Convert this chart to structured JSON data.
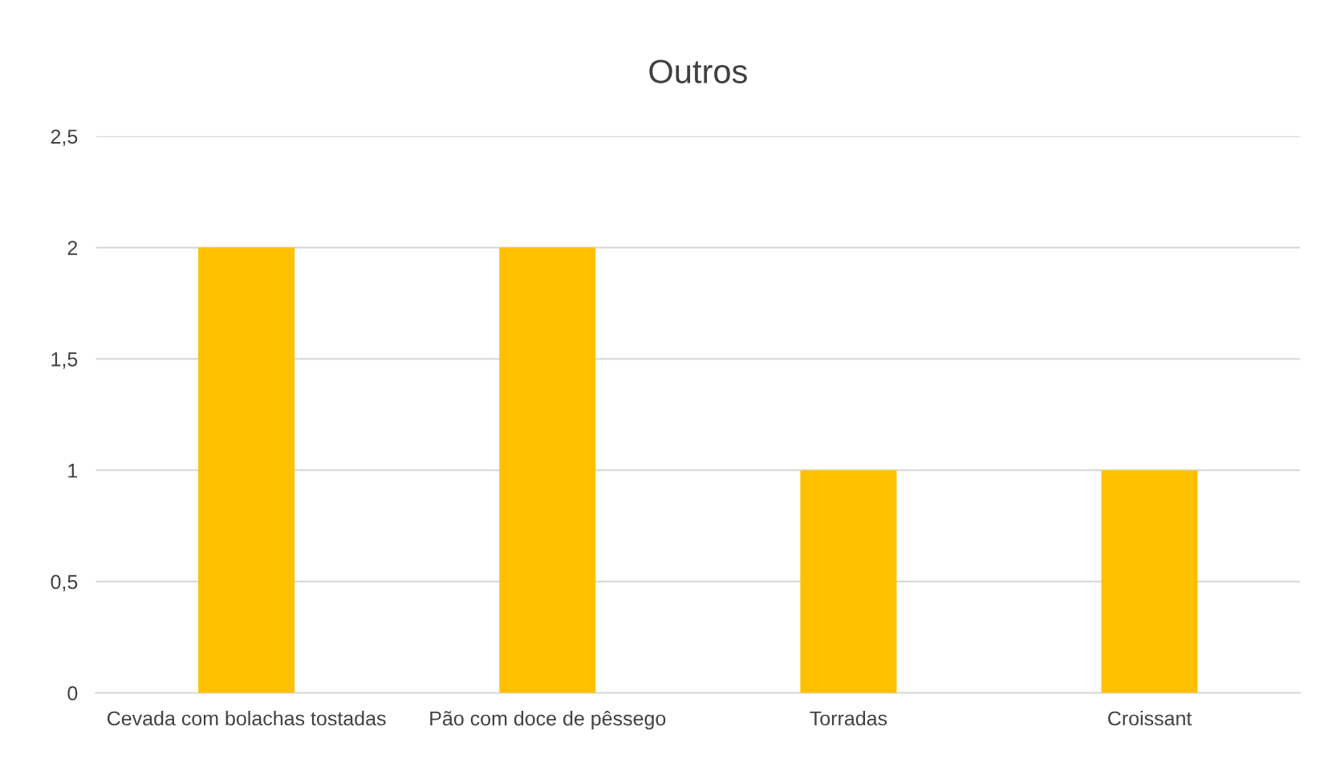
{
  "chart_data": {
    "type": "bar",
    "title": "Outros",
    "categories": [
      "Cevada com bolachas tostadas",
      "Pão com doce de pêssego",
      "Torradas",
      "Croissant"
    ],
    "values": [
      2,
      2,
      1,
      1
    ],
    "color": "#ffc000",
    "ylim": [
      0,
      2.5
    ],
    "yticks": [
      0,
      {
        "value": 0.5,
        "label": "0,5"
      },
      1,
      {
        "value": 1.5,
        "label": "1,5"
      },
      2,
      {
        "value": 2.5,
        "label": "2,5"
      }
    ],
    "grid": "y"
  }
}
